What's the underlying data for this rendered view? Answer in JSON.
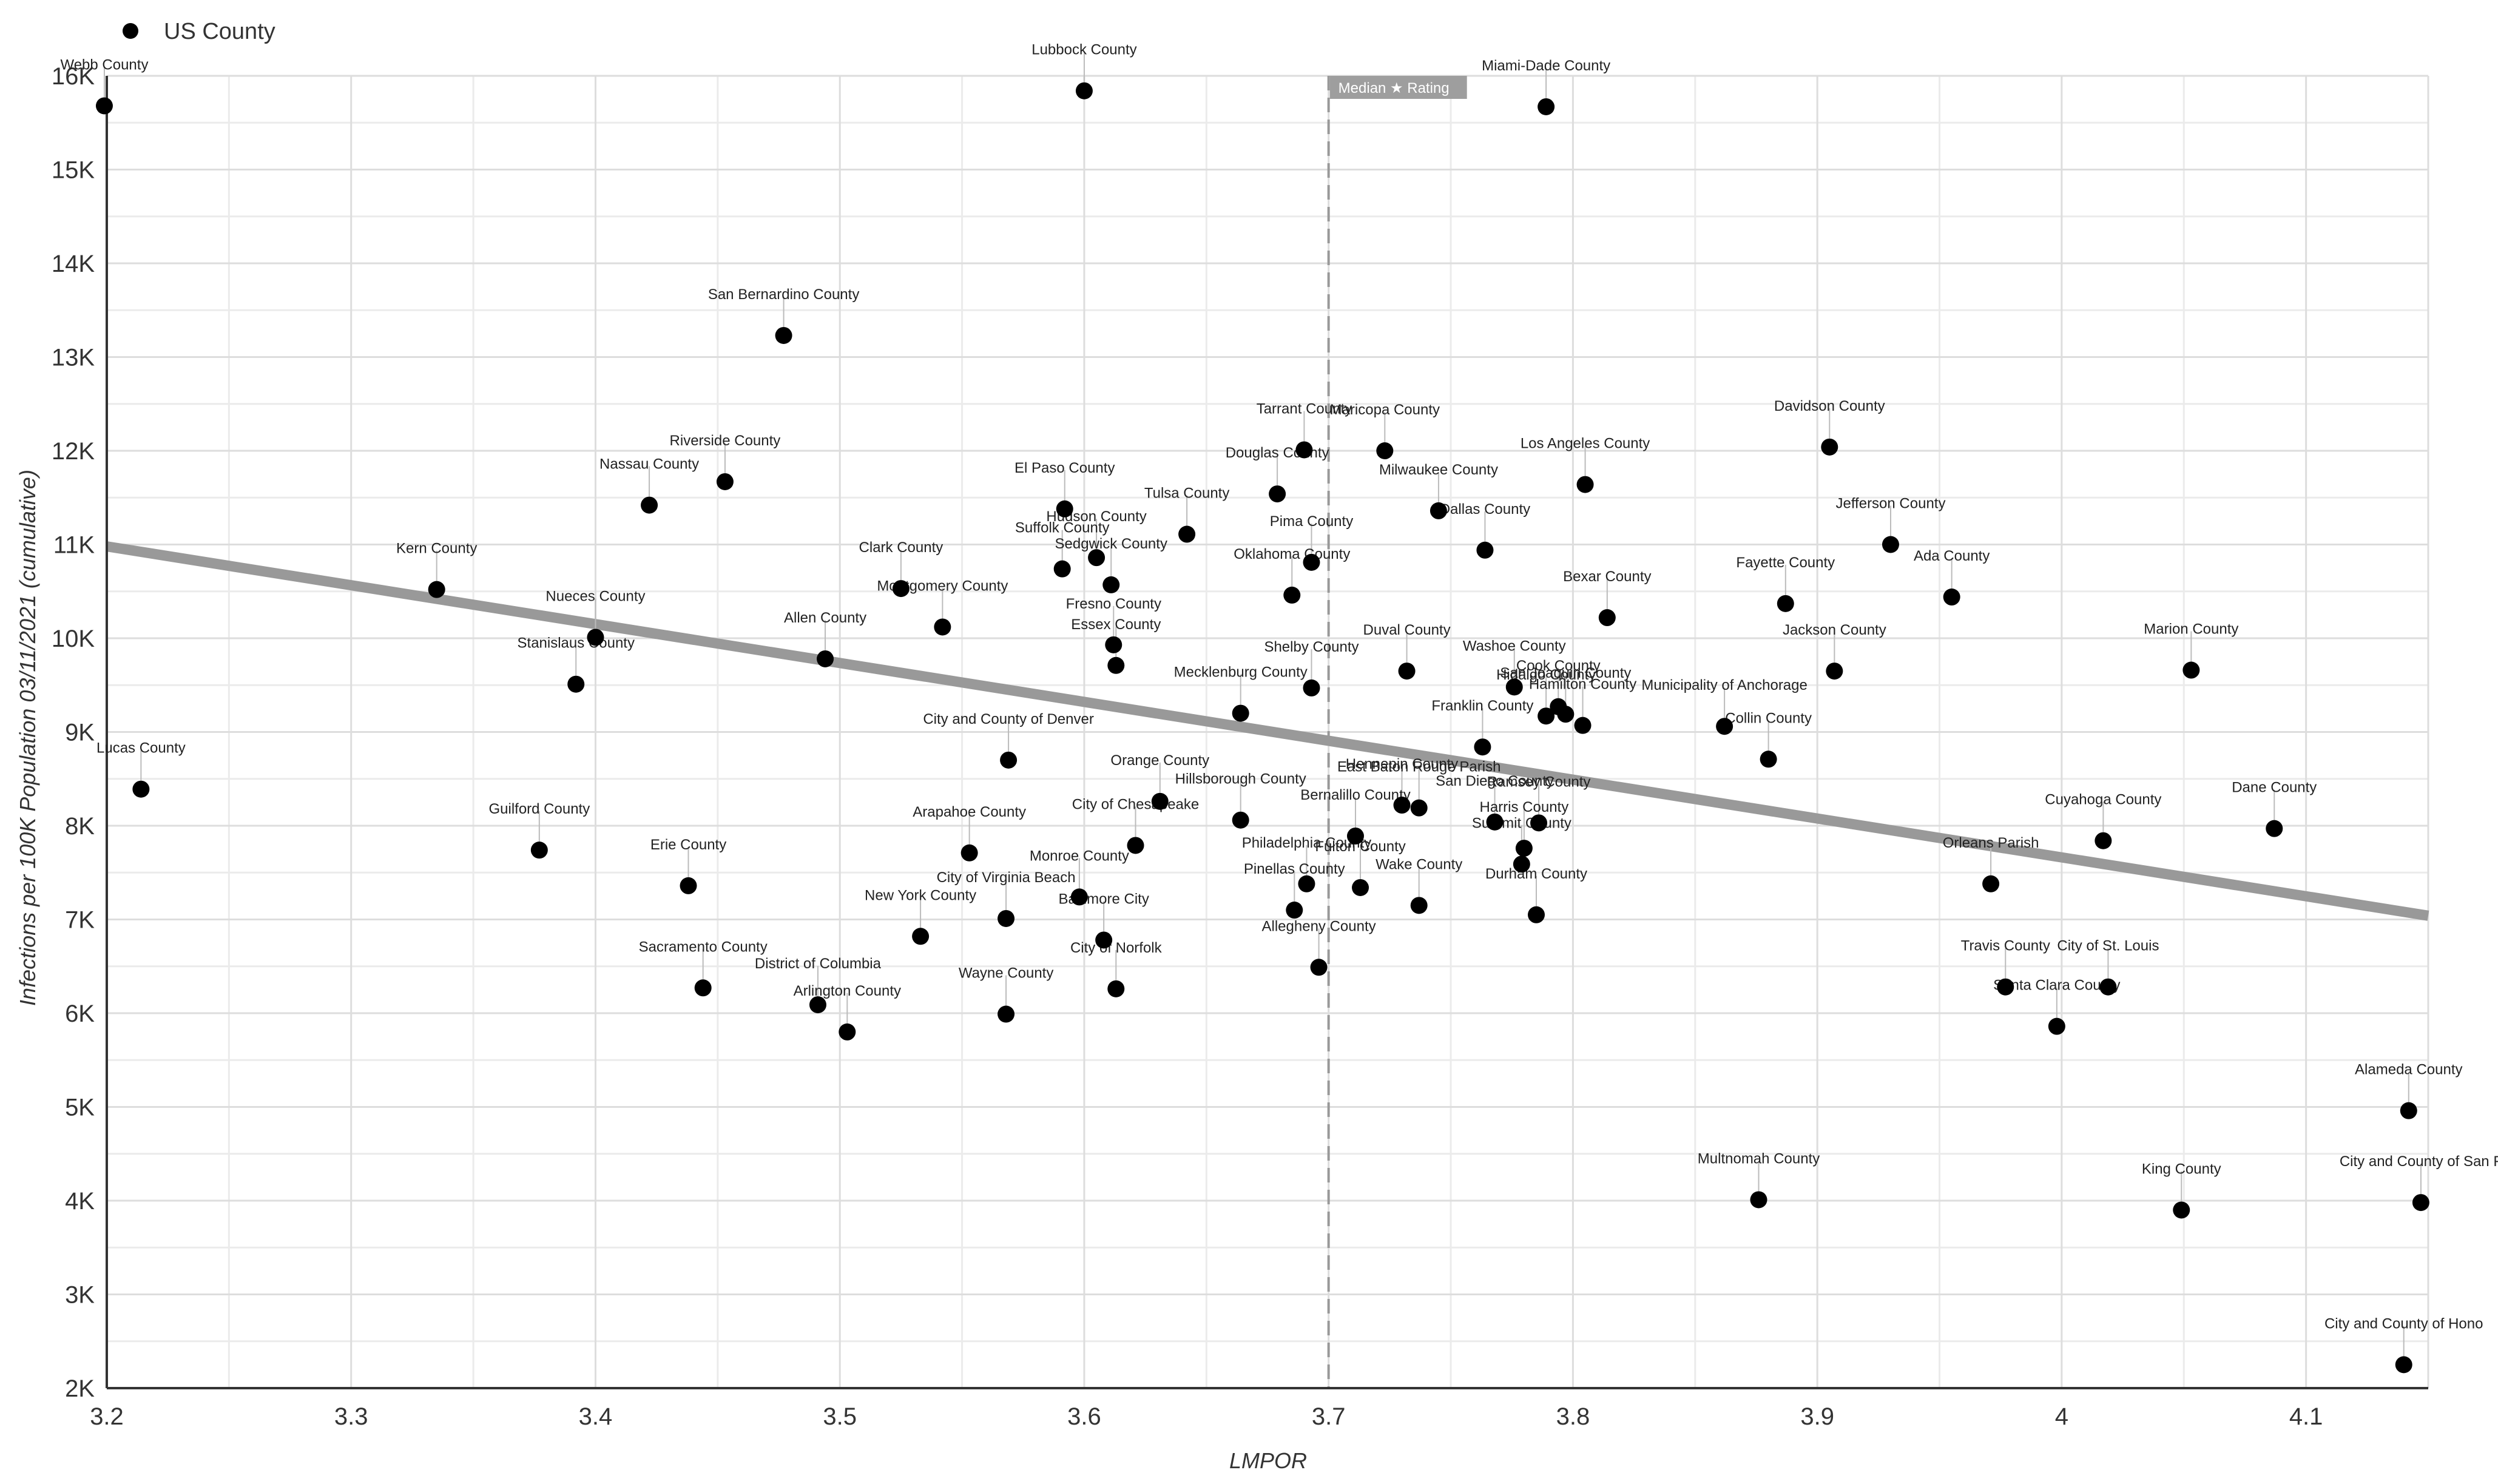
{
  "chart_data": {
    "type": "scatter",
    "xlabel": "LMPOR",
    "ylabel": "Infections per 100K Population 03/11/2021 (cumulative)",
    "xlim": [
      3.2,
      4.15
    ],
    "ylim": [
      2000,
      16000
    ],
    "x_ticks": [
      3.2,
      3.3,
      3.4,
      3.5,
      3.6,
      3.7,
      3.8,
      3.9,
      4.0,
      4.1
    ],
    "x_tick_labels": [
      "3.2",
      "3.3",
      "3.4",
      "3.5",
      "3.6",
      "3.7",
      "3.8",
      "3.9",
      "4",
      "4.1"
    ],
    "y_ticks": [
      2000,
      3000,
      4000,
      5000,
      6000,
      7000,
      8000,
      9000,
      10000,
      11000,
      12000,
      13000,
      14000,
      15000,
      16000
    ],
    "y_tick_labels": [
      "2K",
      "3K",
      "4K",
      "5K",
      "6K",
      "7K",
      "8K",
      "9K",
      "10K",
      "11K",
      "12K",
      "13K",
      "14K",
      "15K",
      "16K"
    ],
    "grid": true,
    "legend": {
      "position": "top-left",
      "entries": [
        "US County"
      ]
    },
    "median_line": {
      "x": 3.7,
      "label": "Median ★ Rating"
    },
    "trendline": {
      "x": [
        3.2,
        4.15
      ],
      "y": [
        10980,
        7040
      ]
    },
    "colors": {
      "point": "#000000",
      "trendline": "#999999",
      "grid": "#dddddd",
      "median": "#999999"
    },
    "series": [
      {
        "name": "US County",
        "points": [
          {
            "x": 3.199,
            "y": 15680,
            "label": "Webb County"
          },
          {
            "x": 3.6,
            "y": 15840,
            "label": "Lubbock County"
          },
          {
            "x": 3.789,
            "y": 15670,
            "label": "Miami-Dade County"
          },
          {
            "x": 3.477,
            "y": 13230,
            "label": "San Bernardino County"
          },
          {
            "x": 3.69,
            "y": 12010,
            "label": "Tarrant County"
          },
          {
            "x": 3.723,
            "y": 12000,
            "label": "Maricopa County"
          },
          {
            "x": 3.905,
            "y": 12040,
            "label": "Davidson County"
          },
          {
            "x": 3.453,
            "y": 11670,
            "label": "Riverside County"
          },
          {
            "x": 3.422,
            "y": 11420,
            "label": "Nassau County"
          },
          {
            "x": 3.679,
            "y": 11540,
            "label": "Douglas County"
          },
          {
            "x": 3.805,
            "y": 11640,
            "label": "Los Angeles County"
          },
          {
            "x": 3.592,
            "y": 11380,
            "label": "El Paso County"
          },
          {
            "x": 3.745,
            "y": 11360,
            "label": "Milwaukee County"
          },
          {
            "x": 3.642,
            "y": 11110,
            "label": "Tulsa County"
          },
          {
            "x": 3.605,
            "y": 10860,
            "label": "Hudson County"
          },
          {
            "x": 3.591,
            "y": 10740,
            "label": "Suffolk County"
          },
          {
            "x": 3.611,
            "y": 10570,
            "label": "Sedgwick County"
          },
          {
            "x": 3.693,
            "y": 10810,
            "label": "Pima County"
          },
          {
            "x": 3.764,
            "y": 10940,
            "label": "Dallas County"
          },
          {
            "x": 3.93,
            "y": 11000,
            "label": "Jefferson County"
          },
          {
            "x": 3.955,
            "y": 10440,
            "label": "Ada County"
          },
          {
            "x": 3.335,
            "y": 10520,
            "label": "Kern County"
          },
          {
            "x": 3.525,
            "y": 10530,
            "label": "Clark County"
          },
          {
            "x": 3.685,
            "y": 10460,
            "label": "Oklahoma County"
          },
          {
            "x": 3.887,
            "y": 10370,
            "label": "Fayette County"
          },
          {
            "x": 3.814,
            "y": 10220,
            "label": "Bexar County"
          },
          {
            "x": 3.4,
            "y": 10010,
            "label": "Nueces County"
          },
          {
            "x": 3.542,
            "y": 10120,
            "label": "Montgomery County"
          },
          {
            "x": 3.612,
            "y": 9930,
            "label": "Fresno County"
          },
          {
            "x": 3.392,
            "y": 9510,
            "label": "Stanislaus County"
          },
          {
            "x": 3.494,
            "y": 9780,
            "label": "Allen County"
          },
          {
            "x": 3.613,
            "y": 9710,
            "label": "Essex County"
          },
          {
            "x": 3.693,
            "y": 9470,
            "label": "Shelby County"
          },
          {
            "x": 3.732,
            "y": 9650,
            "label": "Duval County"
          },
          {
            "x": 4.053,
            "y": 9660,
            "label": "Marion County"
          },
          {
            "x": 3.907,
            "y": 9650,
            "label": "Jackson County"
          },
          {
            "x": 3.776,
            "y": 9480,
            "label": "Washoe County"
          },
          {
            "x": 3.794,
            "y": 9270,
            "label": "Cook County"
          },
          {
            "x": 3.789,
            "y": 9170,
            "label": "Hidalgo County"
          },
          {
            "x": 3.797,
            "y": 9190,
            "label": "San Joaquin County"
          },
          {
            "x": 3.804,
            "y": 9070,
            "label": "Hamilton County"
          },
          {
            "x": 3.862,
            "y": 9060,
            "label": "Municipality of Anchorage"
          },
          {
            "x": 3.664,
            "y": 9200,
            "label": "Mecklenburg County"
          },
          {
            "x": 3.763,
            "y": 8840,
            "label": "Franklin County"
          },
          {
            "x": 3.88,
            "y": 8710,
            "label": "Collin County"
          },
          {
            "x": 3.569,
            "y": 8700,
            "label": "City and County of Denver"
          },
          {
            "x": 3.214,
            "y": 8390,
            "label": "Lucas County"
          },
          {
            "x": 3.631,
            "y": 8260,
            "label": "Orange County"
          },
          {
            "x": 3.73,
            "y": 8220,
            "label": "Hennepin County"
          },
          {
            "x": 3.737,
            "y": 8190,
            "label": "East Baton Rouge Parish"
          },
          {
            "x": 3.768,
            "y": 8040,
            "label": "San Diego County"
          },
          {
            "x": 3.786,
            "y": 8030,
            "label": "Ramsey County"
          },
          {
            "x": 3.664,
            "y": 8060,
            "label": "Hillsborough County"
          },
          {
            "x": 3.711,
            "y": 7890,
            "label": "Bernalillo County"
          },
          {
            "x": 3.78,
            "y": 7760,
            "label": "Harris County"
          },
          {
            "x": 3.779,
            "y": 7590,
            "label": "Summit County"
          },
          {
            "x": 3.621,
            "y": 7790,
            "label": "City of Chesapeake"
          },
          {
            "x": 4.087,
            "y": 7970,
            "label": "Dane County"
          },
          {
            "x": 4.017,
            "y": 7840,
            "label": "Cuyahoga County"
          },
          {
            "x": 3.377,
            "y": 7740,
            "label": "Guilford County"
          },
          {
            "x": 3.553,
            "y": 7710,
            "label": "Arapahoe County"
          },
          {
            "x": 3.438,
            "y": 7360,
            "label": "Erie County"
          },
          {
            "x": 3.691,
            "y": 7380,
            "label": "Philadelphia County"
          },
          {
            "x": 3.713,
            "y": 7340,
            "label": "Fulton County"
          },
          {
            "x": 3.598,
            "y": 7240,
            "label": "Monroe County"
          },
          {
            "x": 3.737,
            "y": 7150,
            "label": "Wake County"
          },
          {
            "x": 3.686,
            "y": 7100,
            "label": "Pinellas County"
          },
          {
            "x": 3.785,
            "y": 7050,
            "label": "Durham County"
          },
          {
            "x": 3.971,
            "y": 7380,
            "label": "Orleans Parish"
          },
          {
            "x": 3.568,
            "y": 7010,
            "label": "City of Virginia Beach"
          },
          {
            "x": 3.533,
            "y": 6820,
            "label": "New York County"
          },
          {
            "x": 3.608,
            "y": 6780,
            "label": "Baltimore City"
          },
          {
            "x": 3.696,
            "y": 6490,
            "label": "Allegheny County"
          },
          {
            "x": 3.444,
            "y": 6270,
            "label": "Sacramento County"
          },
          {
            "x": 3.613,
            "y": 6260,
            "label": "City of Norfolk"
          },
          {
            "x": 3.491,
            "y": 6090,
            "label": "District of Columbia"
          },
          {
            "x": 3.568,
            "y": 5990,
            "label": "Wayne County"
          },
          {
            "x": 3.503,
            "y": 5800,
            "label": "Arlington County"
          },
          {
            "x": 3.977,
            "y": 6280,
            "label": "Travis County"
          },
          {
            "x": 4.019,
            "y": 6280,
            "label": "City of St. Louis"
          },
          {
            "x": 3.998,
            "y": 5860,
            "label": "Santa Clara County"
          },
          {
            "x": 4.142,
            "y": 4960,
            "label": "Alameda County"
          },
          {
            "x": 3.876,
            "y": 4010,
            "label": "Multnomah County"
          },
          {
            "x": 4.049,
            "y": 3900,
            "label": "King County"
          },
          {
            "x": 4.147,
            "y": 3980,
            "label": "City and County of San F"
          },
          {
            "x": 4.14,
            "y": 2250,
            "label": "City and County of Hono"
          }
        ]
      }
    ]
  }
}
